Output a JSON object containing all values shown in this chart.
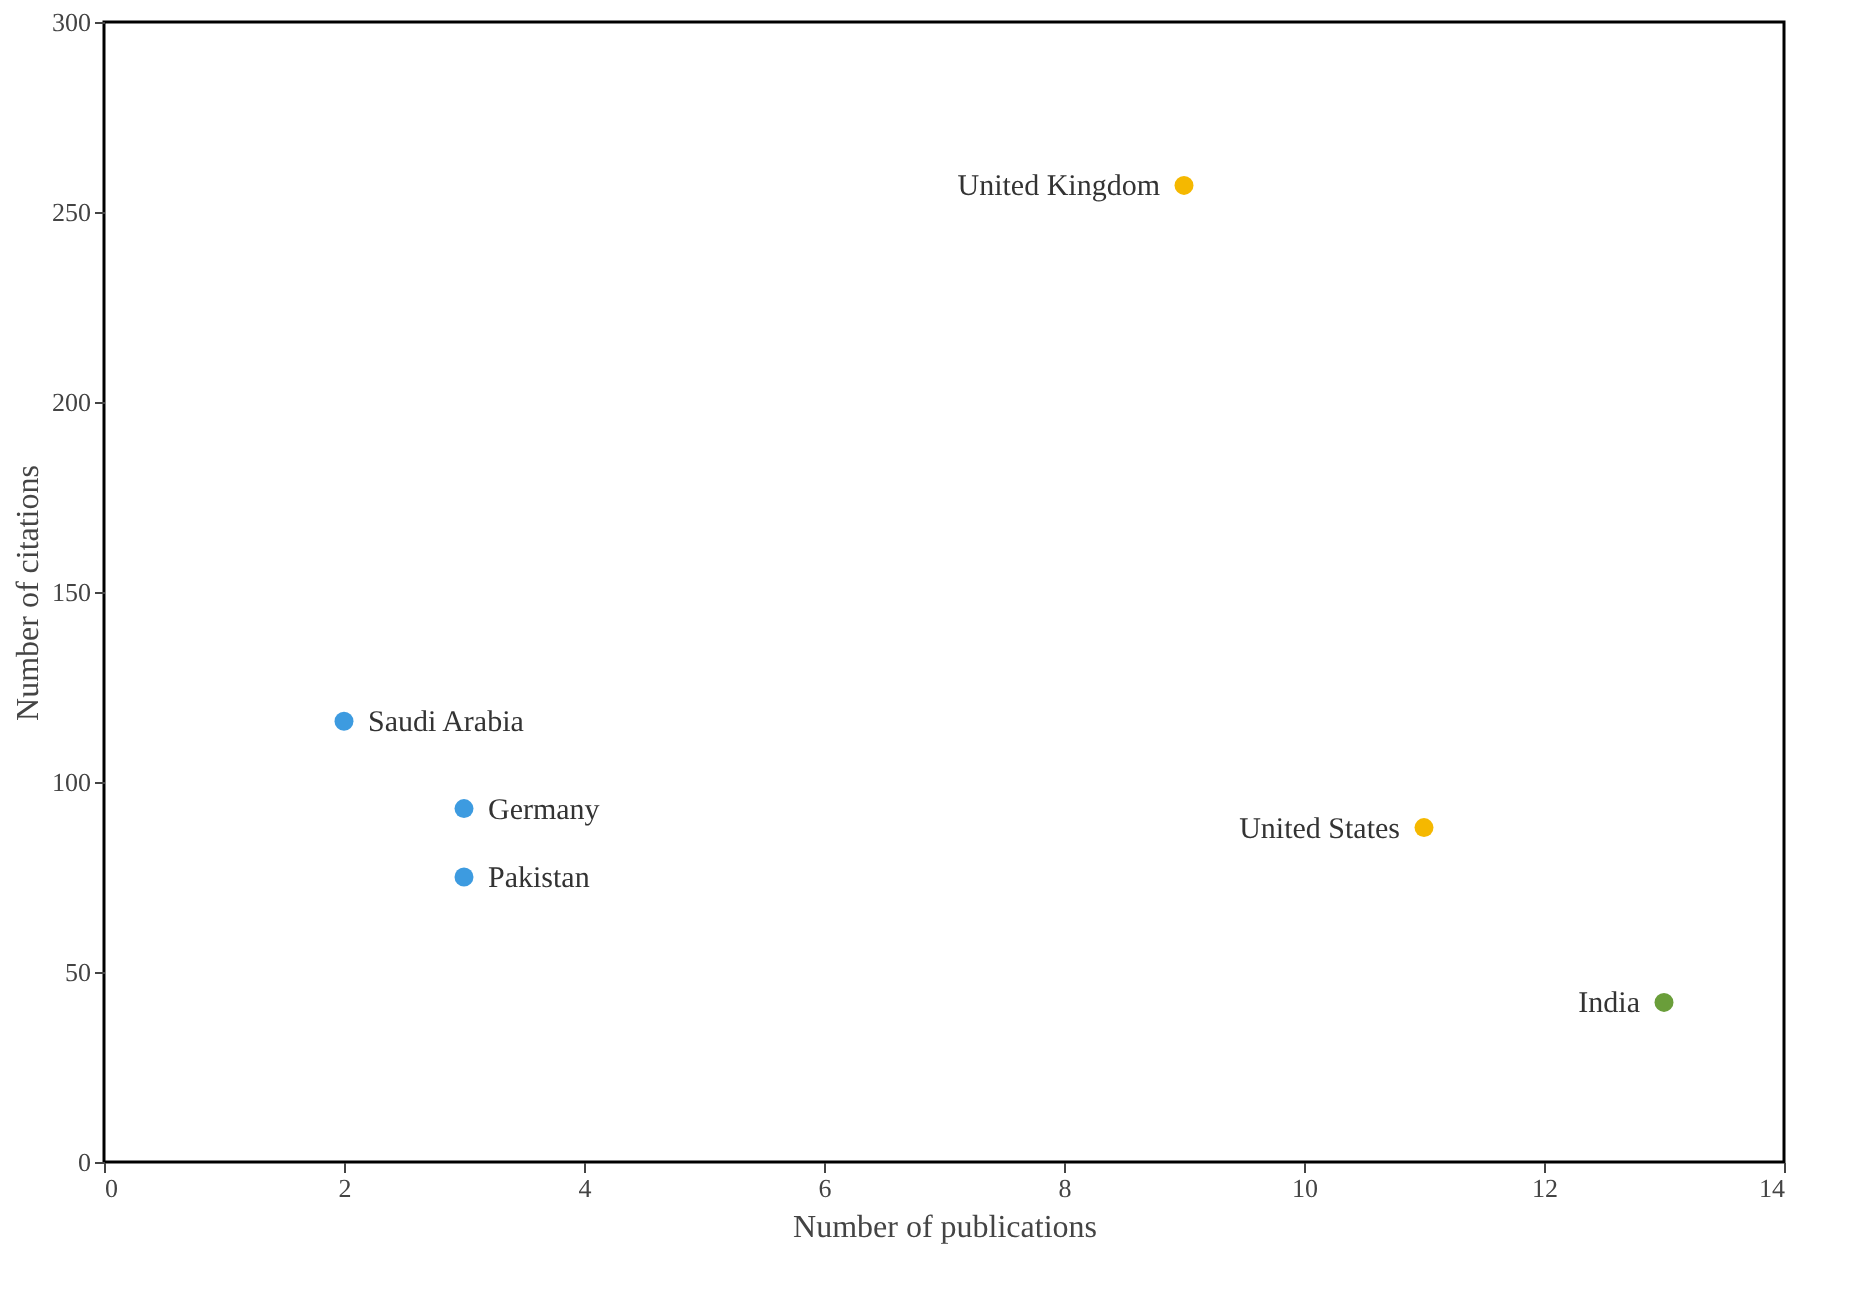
{
  "chart_data": {
    "type": "scatter",
    "xlabel": "Number of publications",
    "ylabel": "Number of citations",
    "xlim": [
      0,
      14
    ],
    "xticks": [
      0,
      2,
      4,
      6,
      8,
      10,
      12,
      14
    ],
    "ylim": [
      0,
      300
    ],
    "yticks": [
      0,
      50,
      100,
      150,
      200,
      250,
      300
    ],
    "grid": false,
    "legend": false,
    "marker": "circle",
    "series": [
      {
        "color": "#3d9be0",
        "x": [
          2,
          3,
          3
        ],
        "values": [
          116,
          93,
          75
        ]
      },
      {
        "color": "#f5b800",
        "x": [
          9,
          11
        ],
        "values": [
          257,
          88
        ]
      },
      {
        "color": "#6a9e3a",
        "x": [
          13
        ],
        "values": [
          42
        ]
      }
    ],
    "annotations": [
      {
        "text": "Saudi Arabia",
        "x": 2,
        "y": 116
      },
      {
        "text": "Germany",
        "x": 3,
        "y": 93
      },
      {
        "text": "Pakistan",
        "x": 3,
        "y": 75
      },
      {
        "text": "United Kingdom",
        "x": 9,
        "y": 257
      },
      {
        "text": "United States",
        "x": 11,
        "y": 88
      },
      {
        "text": "India",
        "x": 13,
        "y": 42
      }
    ]
  }
}
